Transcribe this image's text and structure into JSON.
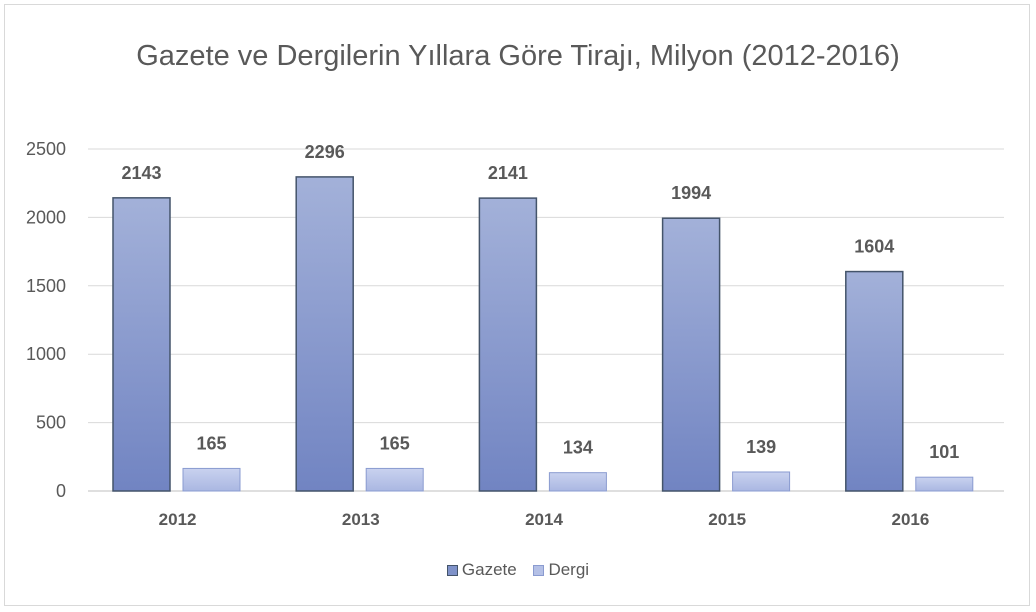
{
  "chart_data": {
    "type": "bar",
    "title": "Gazete ve Dergilerin Yıllara Göre Tirajı, Milyon (2012-2016)",
    "categories": [
      "2012",
      "2013",
      "2014",
      "2015",
      "2016"
    ],
    "series": [
      {
        "name": "Gazete",
        "values": [
          2143,
          2296,
          2141,
          1994,
          1604
        ],
        "color": "#8497cb"
      },
      {
        "name": "Dergi",
        "values": [
          165,
          165,
          134,
          139,
          101
        ],
        "color": "#b4c0e6"
      }
    ],
    "ylim": [
      0,
      2500
    ],
    "yticks": [
      0,
      500,
      1000,
      1500,
      2000,
      2500
    ],
    "grid": true,
    "legend": "bottom"
  }
}
